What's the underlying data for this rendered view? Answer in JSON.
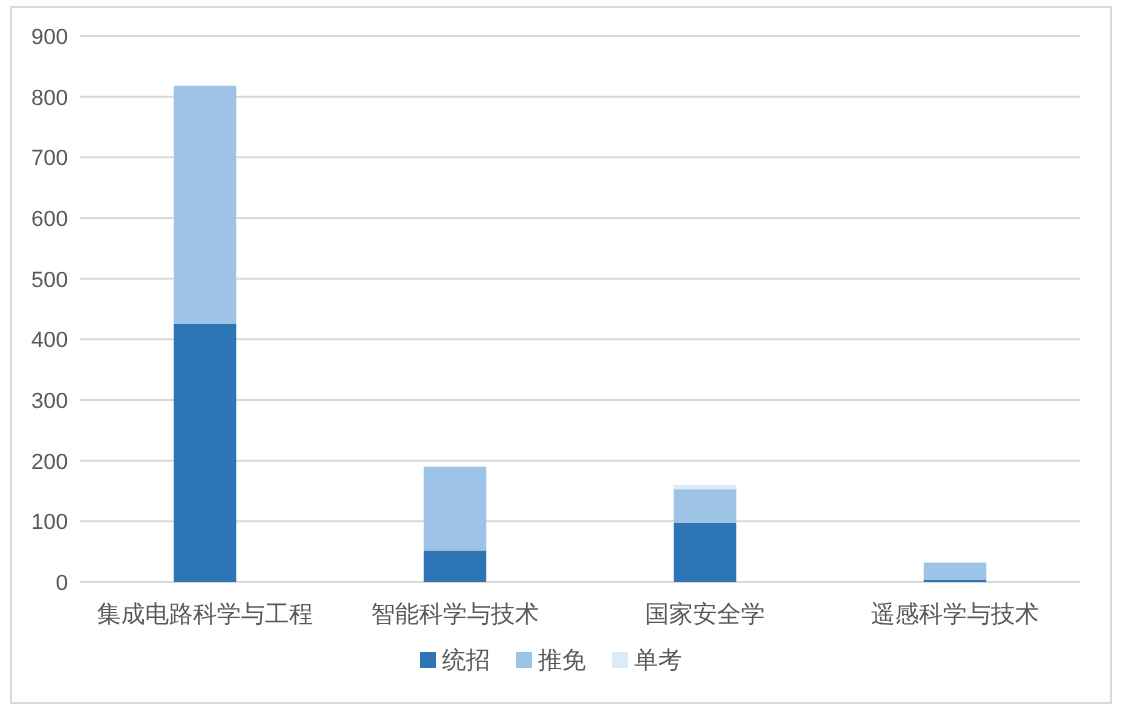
{
  "chart_data": {
    "type": "bar",
    "stacked": true,
    "categories": [
      "集成电路科学与工程",
      "智能科学与技术",
      "国家安全学",
      "遥感科学与技术"
    ],
    "series": [
      {
        "name": "统招",
        "color": "#2e75b6",
        "values": [
          426,
          52,
          98,
          4
        ]
      },
      {
        "name": "推免",
        "color": "#9dc3e6",
        "values": [
          392,
          138,
          55,
          28
        ]
      },
      {
        "name": "单考",
        "color": "#deebf7",
        "values": [
          0,
          0,
          7,
          0
        ]
      }
    ],
    "ylim": [
      0,
      900
    ],
    "yticks": [
      0,
      100,
      200,
      300,
      400,
      500,
      600,
      700,
      800,
      900
    ],
    "grid": "y",
    "legend": "bottom"
  }
}
